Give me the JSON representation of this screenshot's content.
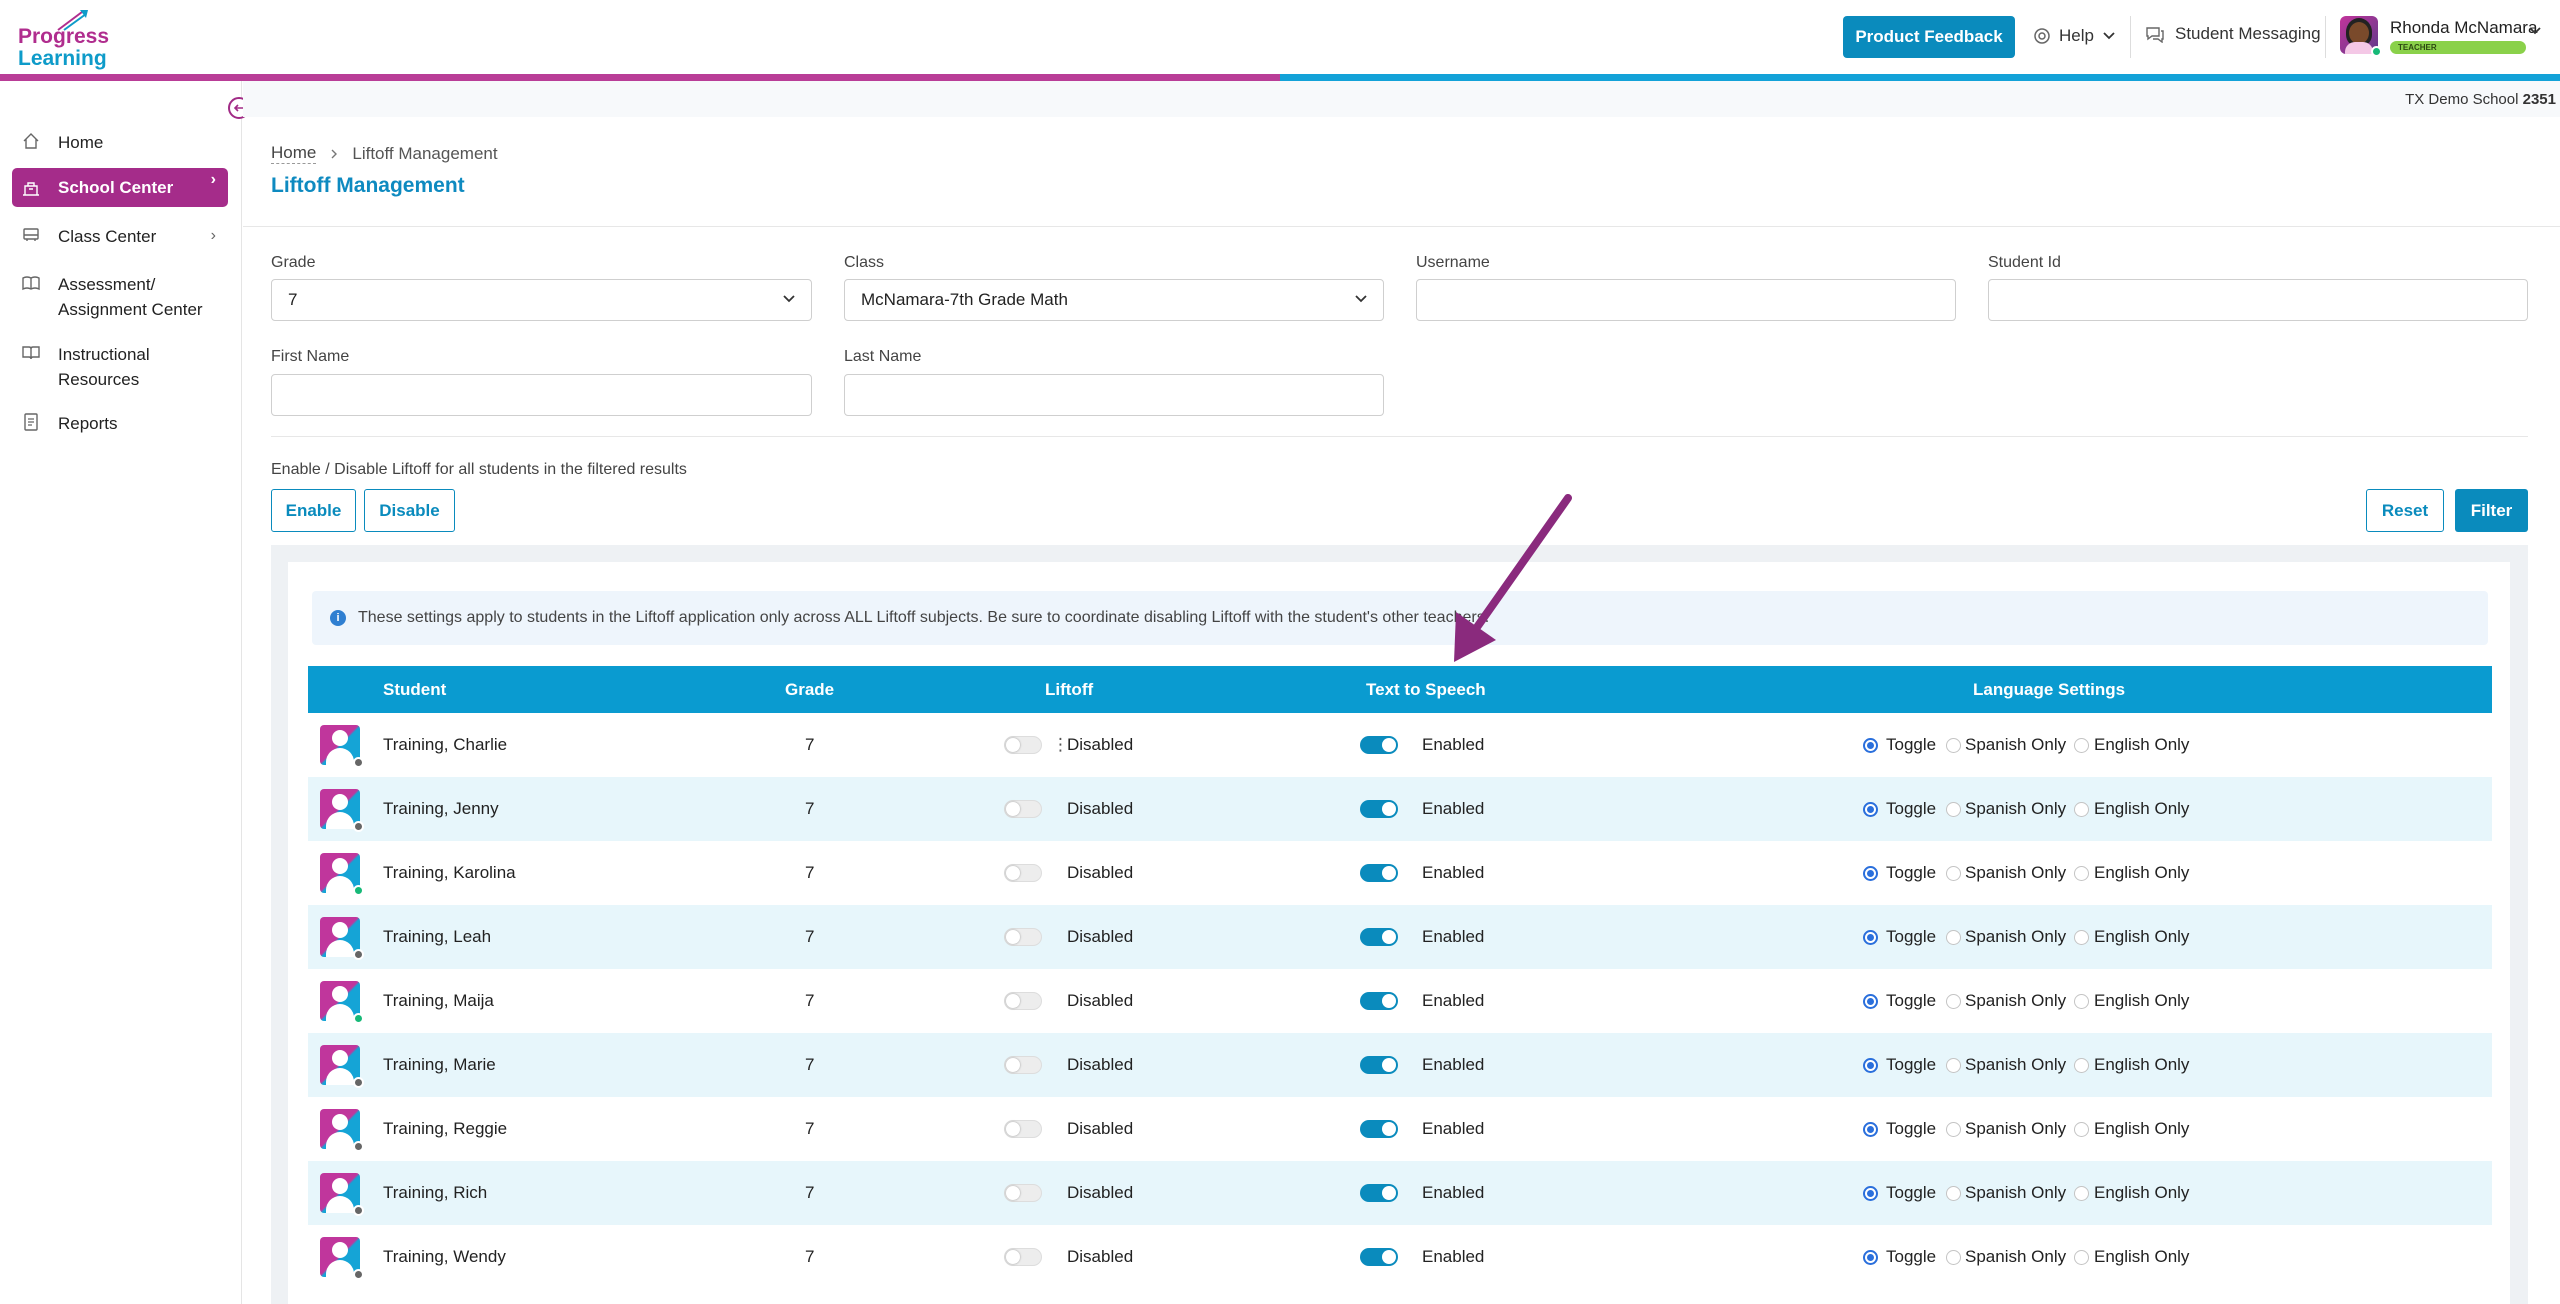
{
  "brand": {
    "line1": "Progress",
    "line2": "Learning",
    "pink": "#b02d8e",
    "blue": "#0e9bc9"
  },
  "header": {
    "feedback_label": "Product Feedback",
    "help_label": "Help",
    "messaging_label": "Student Messaging",
    "user_name": "Rhonda McNamara",
    "user_role": "TEACHER"
  },
  "sidebar": {
    "items": [
      {
        "label": "Home",
        "icon": "home-icon"
      },
      {
        "label": "School Center",
        "icon": "school-icon",
        "active": true
      },
      {
        "label": "Class Center",
        "icon": "bus-icon"
      },
      {
        "label_line1": "Assessment/",
        "label_line2": "Assignment Center",
        "icon": "book-icon"
      },
      {
        "label_line1": "Instructional",
        "label_line2": "Resources",
        "icon": "book-open-icon"
      },
      {
        "label": "Reports",
        "icon": "report-icon"
      }
    ]
  },
  "school": {
    "name": "TX Demo School",
    "id": "2351"
  },
  "breadcrumb": {
    "home": "Home",
    "current": "Liftoff Management"
  },
  "page_title": "Liftoff Management",
  "filters": {
    "grade": {
      "label": "Grade",
      "value": "7"
    },
    "class": {
      "label": "Class",
      "value": "McNamara-7th Grade Math"
    },
    "username": {
      "label": "Username",
      "value": ""
    },
    "student_id": {
      "label": "Student Id",
      "value": ""
    },
    "first_name": {
      "label": "First Name",
      "value": ""
    },
    "last_name": {
      "label": "Last Name",
      "value": ""
    }
  },
  "bulk": {
    "label": "Enable / Disable Liftoff for all students in the filtered results",
    "enable": "Enable",
    "disable": "Disable",
    "reset": "Reset",
    "filter": "Filter"
  },
  "info_text": "These settings apply to students in the Liftoff application only across ALL Liftoff subjects. Be sure to coordinate disabling Liftoff with the student's other teachers.",
  "table": {
    "headers": {
      "student": "Student",
      "grade": "Grade",
      "liftoff": "Liftoff",
      "tts": "Text to Speech",
      "language": "Language Settings"
    },
    "language_options": [
      "Toggle",
      "Spanish Only",
      "English Only"
    ],
    "rows": [
      {
        "name": "Training, Charlie",
        "grade": "7",
        "liftoff": "Disabled",
        "tts": "Enabled",
        "online": false
      },
      {
        "name": "Training, Jenny",
        "grade": "7",
        "liftoff": "Disabled",
        "tts": "Enabled",
        "online": false
      },
      {
        "name": "Training, Karolina",
        "grade": "7",
        "liftoff": "Disabled",
        "tts": "Enabled",
        "online": true
      },
      {
        "name": "Training, Leah",
        "grade": "7",
        "liftoff": "Disabled",
        "tts": "Enabled",
        "online": false
      },
      {
        "name": "Training, Maija",
        "grade": "7",
        "liftoff": "Disabled",
        "tts": "Enabled",
        "online": true
      },
      {
        "name": "Training, Marie",
        "grade": "7",
        "liftoff": "Disabled",
        "tts": "Enabled",
        "online": false
      },
      {
        "name": "Training, Reggie",
        "grade": "7",
        "liftoff": "Disabled",
        "tts": "Enabled",
        "online": false
      },
      {
        "name": "Training, Rich",
        "grade": "7",
        "liftoff": "Disabled",
        "tts": "Enabled",
        "online": false
      },
      {
        "name": "Training, Wendy",
        "grade": "7",
        "liftoff": "Disabled",
        "tts": "Enabled",
        "online": false
      }
    ]
  },
  "colors": {
    "accent": "#0a8bbd",
    "nav_active": "#a52c8a",
    "annotation_arrow": "#8a2a7d"
  }
}
